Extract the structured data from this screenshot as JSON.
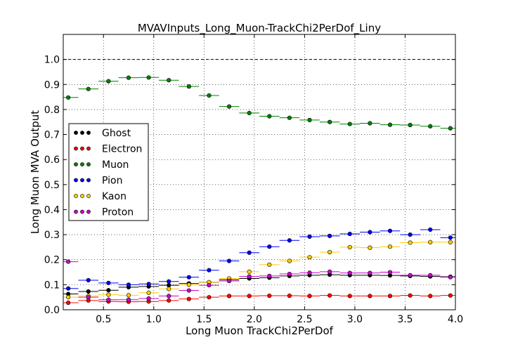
{
  "chart_data": {
    "type": "scatter",
    "title": "MVAVInputs_Long_Muon-TrackChi2PerDof_Liny",
    "xlabel": "Long Muon TrackChi2PerDof",
    "ylabel": "Long Muon MVA Output",
    "xlim": [
      0.1,
      4.0
    ],
    "ylim": [
      0.0,
      1.1
    ],
    "xticks": [
      0.5,
      1.0,
      1.5,
      2.0,
      2.5,
      3.0,
      3.5,
      4.0
    ],
    "xtick_labels": [
      "0.5",
      "1.0",
      "1.5",
      "2.0",
      "2.5",
      "3.0",
      "3.5",
      "4.0"
    ],
    "yticks": [
      0.0,
      0.1,
      0.2,
      0.3,
      0.4,
      0.5,
      0.6,
      0.7,
      0.8,
      0.9,
      1.0
    ],
    "ytick_labels": [
      "0.0",
      "0.1",
      "0.2",
      "0.3",
      "0.4",
      "0.5",
      "0.6",
      "0.7",
      "0.8",
      "0.9",
      "1.0"
    ],
    "grid": true,
    "reference_line": 1.0,
    "legend_position": "center-left",
    "x": [
      0.15,
      0.35,
      0.55,
      0.75,
      0.95,
      1.15,
      1.35,
      1.55,
      1.75,
      1.95,
      2.15,
      2.35,
      2.55,
      2.75,
      2.95,
      3.15,
      3.35,
      3.55,
      3.75,
      3.95
    ],
    "bin_halfwidth": 0.1,
    "series": [
      {
        "name": "Ghost",
        "color": "#000000",
        "values": [
          0.063,
          0.073,
          0.078,
          0.09,
          0.093,
          0.098,
          0.105,
          0.11,
          0.12,
          0.125,
          0.128,
          0.135,
          0.138,
          0.14,
          0.138,
          0.138,
          0.137,
          0.135,
          0.133,
          0.132
        ]
      },
      {
        "name": "Electron",
        "color": "#ff0000",
        "values": [
          0.028,
          0.037,
          0.033,
          0.032,
          0.033,
          0.037,
          0.043,
          0.05,
          0.055,
          0.055,
          0.056,
          0.056,
          0.055,
          0.057,
          0.055,
          0.055,
          0.055,
          0.057,
          0.055,
          0.057
        ]
      },
      {
        "name": "Muon",
        "color": "#008000",
        "values": [
          0.848,
          0.882,
          0.913,
          0.927,
          0.928,
          0.917,
          0.892,
          0.856,
          0.812,
          0.786,
          0.773,
          0.767,
          0.758,
          0.75,
          0.742,
          0.745,
          0.739,
          0.738,
          0.733,
          0.725
        ]
      },
      {
        "name": "Pion",
        "color": "#0000ff",
        "values": [
          0.085,
          0.118,
          0.107,
          0.1,
          0.103,
          0.113,
          0.13,
          0.158,
          0.195,
          0.228,
          0.252,
          0.277,
          0.292,
          0.295,
          0.303,
          0.31,
          0.315,
          0.3,
          0.32,
          0.288
        ]
      },
      {
        "name": "Kaon",
        "color": "#ffcc00",
        "values": [
          0.05,
          0.055,
          0.06,
          0.058,
          0.068,
          0.083,
          0.1,
          0.11,
          0.125,
          0.152,
          0.18,
          0.195,
          0.21,
          0.23,
          0.25,
          0.248,
          0.252,
          0.268,
          0.27,
          0.27
        ]
      },
      {
        "name": "Proton",
        "color": "#cc00cc",
        "values": [
          0.192,
          0.05,
          0.04,
          0.04,
          0.045,
          0.055,
          0.077,
          0.098,
          0.115,
          0.133,
          0.135,
          0.143,
          0.148,
          0.152,
          0.147,
          0.147,
          0.15,
          0.138,
          0.138,
          0.13
        ]
      }
    ]
  }
}
